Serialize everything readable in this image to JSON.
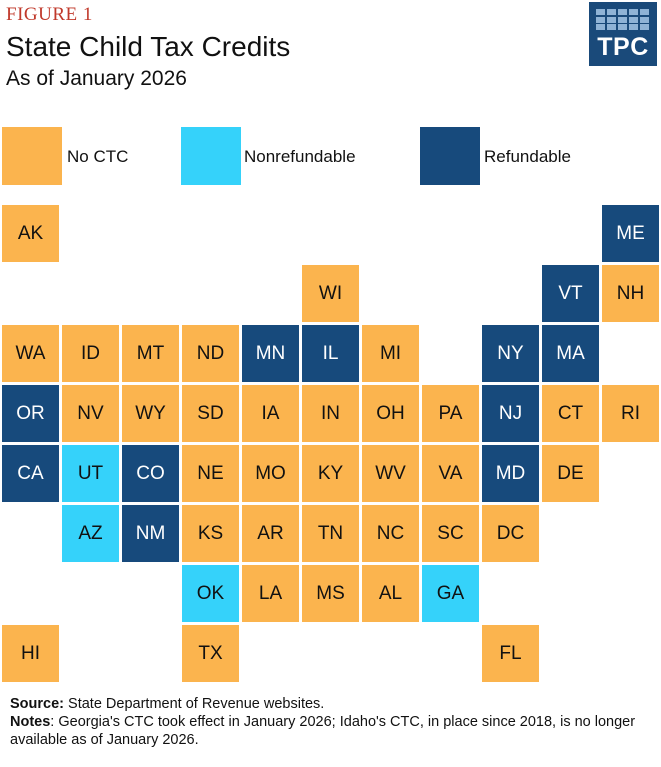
{
  "header": {
    "figure_label": "FIGURE 1",
    "title": "State Child Tax Credits",
    "subtitle": "As of January 2026",
    "logo_text": "TPC"
  },
  "colors": {
    "no_ctc": "#fbb44e",
    "nonrefundable": "#35d2fa",
    "refundable": "#174a7c",
    "text_dark": "#111111",
    "text_light": "#ffffff"
  },
  "chart_data": {
    "type": "tile-grid-map",
    "title": "State Child Tax Credits",
    "subtitle": "As of January 2026",
    "legend": [
      {
        "key": "none",
        "label": "No CTC"
      },
      {
        "key": "nonref",
        "label": "Nonrefundable"
      },
      {
        "key": "ref",
        "label": "Refundable"
      }
    ],
    "states": [
      {
        "abbr": "AK",
        "row": 0,
        "col": 0,
        "status": "none"
      },
      {
        "abbr": "ME",
        "row": 0,
        "col": 10,
        "status": "ref"
      },
      {
        "abbr": "WI",
        "row": 1,
        "col": 5,
        "status": "none"
      },
      {
        "abbr": "VT",
        "row": 1,
        "col": 9,
        "status": "ref"
      },
      {
        "abbr": "NH",
        "row": 1,
        "col": 10,
        "status": "none"
      },
      {
        "abbr": "WA",
        "row": 2,
        "col": 0,
        "status": "none"
      },
      {
        "abbr": "ID",
        "row": 2,
        "col": 1,
        "status": "none"
      },
      {
        "abbr": "MT",
        "row": 2,
        "col": 2,
        "status": "none"
      },
      {
        "abbr": "ND",
        "row": 2,
        "col": 3,
        "status": "none"
      },
      {
        "abbr": "MN",
        "row": 2,
        "col": 4,
        "status": "ref"
      },
      {
        "abbr": "IL",
        "row": 2,
        "col": 5,
        "status": "ref"
      },
      {
        "abbr": "MI",
        "row": 2,
        "col": 6,
        "status": "none"
      },
      {
        "abbr": "NY",
        "row": 2,
        "col": 8,
        "status": "ref"
      },
      {
        "abbr": "MA",
        "row": 2,
        "col": 9,
        "status": "ref"
      },
      {
        "abbr": "OR",
        "row": 3,
        "col": 0,
        "status": "ref"
      },
      {
        "abbr": "NV",
        "row": 3,
        "col": 1,
        "status": "none"
      },
      {
        "abbr": "WY",
        "row": 3,
        "col": 2,
        "status": "none"
      },
      {
        "abbr": "SD",
        "row": 3,
        "col": 3,
        "status": "none"
      },
      {
        "abbr": "IA",
        "row": 3,
        "col": 4,
        "status": "none"
      },
      {
        "abbr": "IN",
        "row": 3,
        "col": 5,
        "status": "none"
      },
      {
        "abbr": "OH",
        "row": 3,
        "col": 6,
        "status": "none"
      },
      {
        "abbr": "PA",
        "row": 3,
        "col": 7,
        "status": "none"
      },
      {
        "abbr": "NJ",
        "row": 3,
        "col": 8,
        "status": "ref"
      },
      {
        "abbr": "CT",
        "row": 3,
        "col": 9,
        "status": "none"
      },
      {
        "abbr": "RI",
        "row": 3,
        "col": 10,
        "status": "none"
      },
      {
        "abbr": "CA",
        "row": 4,
        "col": 0,
        "status": "ref"
      },
      {
        "abbr": "UT",
        "row": 4,
        "col": 1,
        "status": "nonref"
      },
      {
        "abbr": "CO",
        "row": 4,
        "col": 2,
        "status": "ref"
      },
      {
        "abbr": "NE",
        "row": 4,
        "col": 3,
        "status": "none"
      },
      {
        "abbr": "MO",
        "row": 4,
        "col": 4,
        "status": "none"
      },
      {
        "abbr": "KY",
        "row": 4,
        "col": 5,
        "status": "none"
      },
      {
        "abbr": "WV",
        "row": 4,
        "col": 6,
        "status": "none"
      },
      {
        "abbr": "VA",
        "row": 4,
        "col": 7,
        "status": "none"
      },
      {
        "abbr": "MD",
        "row": 4,
        "col": 8,
        "status": "ref"
      },
      {
        "abbr": "DE",
        "row": 4,
        "col": 9,
        "status": "none"
      },
      {
        "abbr": "AZ",
        "row": 5,
        "col": 1,
        "status": "nonref"
      },
      {
        "abbr": "NM",
        "row": 5,
        "col": 2,
        "status": "ref"
      },
      {
        "abbr": "KS",
        "row": 5,
        "col": 3,
        "status": "none"
      },
      {
        "abbr": "AR",
        "row": 5,
        "col": 4,
        "status": "none"
      },
      {
        "abbr": "TN",
        "row": 5,
        "col": 5,
        "status": "none"
      },
      {
        "abbr": "NC",
        "row": 5,
        "col": 6,
        "status": "none"
      },
      {
        "abbr": "SC",
        "row": 5,
        "col": 7,
        "status": "none"
      },
      {
        "abbr": "DC",
        "row": 5,
        "col": 8,
        "status": "none"
      },
      {
        "abbr": "OK",
        "row": 6,
        "col": 3,
        "status": "nonref"
      },
      {
        "abbr": "LA",
        "row": 6,
        "col": 4,
        "status": "none"
      },
      {
        "abbr": "MS",
        "row": 6,
        "col": 5,
        "status": "none"
      },
      {
        "abbr": "AL",
        "row": 6,
        "col": 6,
        "status": "none"
      },
      {
        "abbr": "GA",
        "row": 6,
        "col": 7,
        "status": "nonref"
      },
      {
        "abbr": "HI",
        "row": 7,
        "col": 0,
        "status": "none"
      },
      {
        "abbr": "TX",
        "row": 7,
        "col": 3,
        "status": "none"
      },
      {
        "abbr": "FL",
        "row": 7,
        "col": 8,
        "status": "none"
      }
    ]
  },
  "footer": {
    "source_label": "Source:",
    "source_text": "State Department of Revenue websites.",
    "notes_label": "Notes",
    "notes_text": ": Georgia's CTC took effect in January 2026; Idaho's CTC, in place since 2018, is no longer available as of January 2026."
  }
}
